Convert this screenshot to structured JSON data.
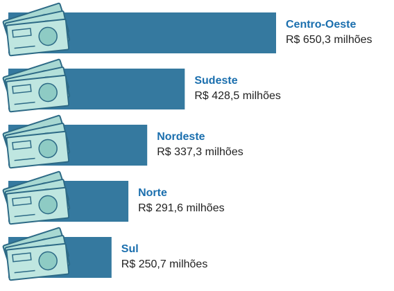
{
  "chart_data": {
    "type": "bar",
    "orientation": "horizontal",
    "color": "#35799f",
    "categories": [
      "Centro-Oeste",
      "Sudeste",
      "Nordeste",
      "Norte",
      "Sul"
    ],
    "values": [
      650.3,
      428.5,
      337.3,
      291.6,
      250.7
    ],
    "value_labels": [
      "R$ 650,3 milhões",
      "R$ 428,5 milhões",
      "R$ 337,3 milhões",
      "R$ 291,6 milhões",
      "R$ 250,7 milhões"
    ]
  }
}
